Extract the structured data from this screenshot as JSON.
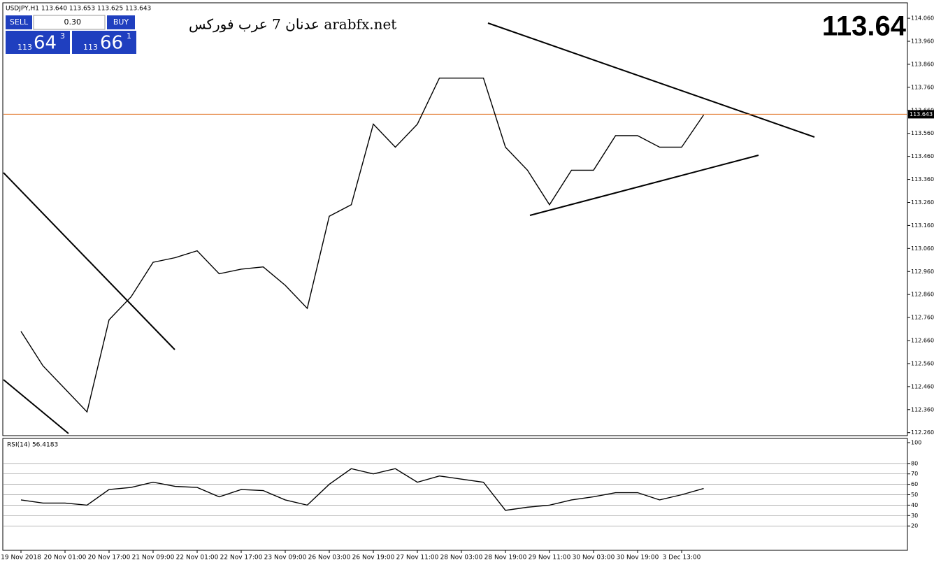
{
  "header": "USDJPY,H1  113.640 113.653 113.625 113.643",
  "trade_panel": {
    "sell": "SELL",
    "buy": "BUY",
    "lot": "0.30",
    "sell_big": "113",
    "sell_pips": "64",
    "sell_frac": "3",
    "buy_big": "113",
    "buy_pips": "66",
    "buy_frac": "1"
  },
  "watermark": "عدنان 7 عرب فوركس arabfx.net",
  "big_price": "113.64",
  "chart_data": [
    {
      "type": "line",
      "color": "#000000",
      "categories": [
        "19 Nov 2018",
        null,
        "20 Nov 01:00",
        null,
        "20 Nov 17:00",
        null,
        "21 Nov 09:00",
        null,
        "22 Nov 01:00",
        null,
        "22 Nov 17:00",
        null,
        "23 Nov 09:00",
        null,
        "26 Nov 03:00",
        null,
        "26 Nov 19:00",
        null,
        "27 Nov 11:00",
        null,
        "28 Nov 03:00",
        null,
        "28 Nov 19:00",
        null,
        "29 Nov 11:00",
        null,
        "30 Nov 03:00",
        null,
        "30 Nov 19:00",
        null,
        "3 Dec 13:00",
        null
      ],
      "values": [
        112.7,
        112.55,
        112.45,
        112.35,
        112.75,
        112.85,
        113.0,
        113.02,
        113.05,
        112.95,
        112.97,
        112.98,
        112.9,
        112.8,
        113.2,
        113.25,
        113.6,
        113.5,
        113.6,
        113.8,
        113.8,
        113.8,
        113.5,
        113.4,
        113.25,
        113.4,
        113.4,
        113.55,
        113.55,
        113.5,
        113.5,
        113.64
      ],
      "ylim": [
        112.25,
        114.115
      ],
      "yticks": [
        {
          "value": 112.26,
          "label": "112.260"
        },
        {
          "value": 112.36,
          "label": "112.360"
        },
        {
          "value": 112.46,
          "label": "112.460"
        },
        {
          "value": 112.56,
          "label": "112.560"
        },
        {
          "value": 112.66,
          "label": "112.660"
        },
        {
          "value": 112.76,
          "label": "112.760"
        },
        {
          "value": 112.86,
          "label": "112.860"
        },
        {
          "value": 112.96,
          "label": "112.960"
        },
        {
          "value": 113.06,
          "label": "113.060"
        },
        {
          "value": 113.16,
          "label": "113.160"
        },
        {
          "value": 113.26,
          "label": "113.260"
        },
        {
          "value": 113.36,
          "label": "113.360"
        },
        {
          "value": 113.46,
          "label": "113.460"
        },
        {
          "value": 113.56,
          "label": "113.560"
        },
        {
          "value": 113.66,
          "label": "113.660"
        },
        {
          "value": 113.76,
          "label": "113.760"
        },
        {
          "value": 113.86,
          "label": "113.860"
        },
        {
          "value": 113.96,
          "label": "113.960"
        },
        {
          "value": 114.06,
          "label": "114.060"
        }
      ],
      "current_price": {
        "value": 113.643,
        "label": "113.643"
      }
    },
    {
      "type": "line",
      "color": "#000000",
      "title": "RSI(14) 56.4183",
      "values": [
        45,
        42,
        42,
        40,
        55,
        57,
        62,
        58,
        57,
        48,
        55,
        54,
        45,
        40,
        60,
        75,
        70,
        75,
        62,
        68,
        65,
        62,
        35,
        38,
        40,
        45,
        48,
        52,
        52,
        45,
        50,
        56
      ],
      "ylim": [
        0,
        100
      ],
      "yticks": [
        100,
        80,
        70,
        60,
        50,
        40,
        30,
        20
      ]
    }
  ]
}
